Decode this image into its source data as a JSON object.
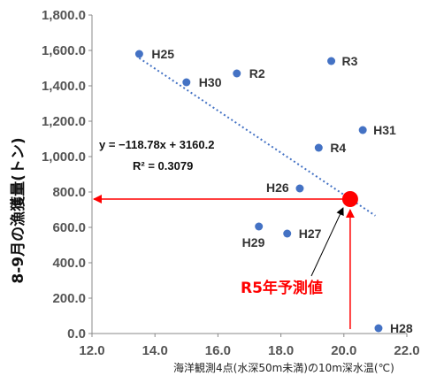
{
  "chart_data": {
    "type": "scatter",
    "xlabel": "海洋観測4点(水深50m未満)の10m深水温(℃)",
    "ylabel": "8-9月の漁獲量(トン)",
    "xlim": [
      12.0,
      22.0
    ],
    "ylim": [
      0.0,
      1800.0
    ],
    "x_ticks": [
      "12.0",
      "14.0",
      "16.0",
      "18.0",
      "20.0",
      "22.0"
    ],
    "y_ticks": [
      "0.0",
      "200.0",
      "400.0",
      "600.0",
      "800.0",
      "1,000.0",
      "1,200.0",
      "1,400.0",
      "1,600.0",
      "1,800.0"
    ],
    "points": [
      {
        "label": "H25",
        "x": 13.5,
        "y": 1580
      },
      {
        "label": "H30",
        "x": 15.0,
        "y": 1420
      },
      {
        "label": "R2",
        "x": 16.6,
        "y": 1470
      },
      {
        "label": "R3",
        "x": 19.6,
        "y": 1540
      },
      {
        "label": "H31",
        "x": 20.6,
        "y": 1150
      },
      {
        "label": "R4",
        "x": 19.2,
        "y": 1050
      },
      {
        "label": "H26",
        "x": 18.6,
        "y": 820
      },
      {
        "label": "H29",
        "x": 17.3,
        "y": 605
      },
      {
        "label": "H27",
        "x": 18.2,
        "y": 565
      },
      {
        "label": "H28",
        "x": 21.1,
        "y": 30
      }
    ],
    "trendline": {
      "slope": -118.78,
      "intercept": 3160.2,
      "x_start": 13.5,
      "x_end": 21.0
    },
    "equation": "y = −118.78x + 3160.2",
    "r_squared": "R² = 0.3079",
    "prediction": {
      "label": "R5年予測値",
      "x": 20.2,
      "y": 760
    },
    "colors": {
      "points": "#4472c4",
      "trend": "#4472c4",
      "prediction": "#ff0000",
      "arrows": "#ff0000"
    }
  }
}
